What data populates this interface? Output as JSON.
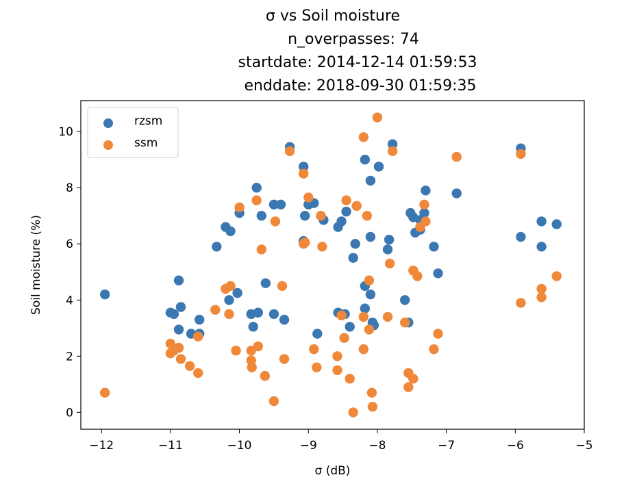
{
  "chart_data": {
    "type": "scatter",
    "title_lines": [
      "σ vs Soil moisture",
      "n_overpasses: 74",
      "startdate: 2014-12-14 01:59:53",
      "enddate: 2018-09-30 01:59:35"
    ],
    "xlabel": "σ (dB)",
    "ylabel": "Soil moisture (%)",
    "xlim": [
      -12.3,
      -5.0
    ],
    "ylim": [
      -0.6,
      11.1
    ],
    "xticks": [
      -12,
      -11,
      -10,
      -9,
      -8,
      -7,
      -6,
      -5
    ],
    "xtick_labels": [
      "−12",
      "−11",
      "−10",
      "−9",
      "−8",
      "−7",
      "−6",
      "−5"
    ],
    "yticks": [
      0,
      2,
      4,
      6,
      8,
      10
    ],
    "ytick_labels": [
      "0",
      "2",
      "4",
      "6",
      "8",
      "10"
    ],
    "grid": false,
    "legend_position": "upper-left",
    "series": [
      {
        "name": "rzsm",
        "color": "#3b78b1",
        "points": [
          [
            -11.95,
            4.2
          ],
          [
            -11.0,
            3.55
          ],
          [
            -10.95,
            3.5
          ],
          [
            -10.88,
            4.7
          ],
          [
            -10.85,
            3.75
          ],
          [
            -10.88,
            2.95
          ],
          [
            -10.7,
            2.8
          ],
          [
            -10.58,
            3.3
          ],
          [
            -10.58,
            2.8
          ],
          [
            -10.33,
            5.9
          ],
          [
            -10.2,
            6.6
          ],
          [
            -10.13,
            6.45
          ],
          [
            -10.15,
            4.0
          ],
          [
            -10.03,
            4.25
          ],
          [
            -10.0,
            7.1
          ],
          [
            -9.8,
            3.05
          ],
          [
            -9.83,
            3.5
          ],
          [
            -9.73,
            3.55
          ],
          [
            -9.75,
            8.0
          ],
          [
            -9.68,
            7.0
          ],
          [
            -9.62,
            4.6
          ],
          [
            -9.5,
            7.4
          ],
          [
            -9.5,
            3.5
          ],
          [
            -9.4,
            7.4
          ],
          [
            -9.35,
            3.3
          ],
          [
            -9.27,
            9.45
          ],
          [
            -9.07,
            8.75
          ],
          [
            -9.07,
            6.1
          ],
          [
            -9.05,
            7.0
          ],
          [
            -9.0,
            7.4
          ],
          [
            -8.92,
            7.45
          ],
          [
            -8.87,
            2.8
          ],
          [
            -8.78,
            6.85
          ],
          [
            -8.57,
            6.6
          ],
          [
            -8.52,
            6.8
          ],
          [
            -8.45,
            7.15
          ],
          [
            -8.57,
            3.55
          ],
          [
            -8.47,
            3.5
          ],
          [
            -8.4,
            3.05
          ],
          [
            -8.35,
            5.5
          ],
          [
            -8.32,
            6.0
          ],
          [
            -8.18,
            9.0
          ],
          [
            -8.18,
            4.5
          ],
          [
            -8.18,
            3.7
          ],
          [
            -8.1,
            8.25
          ],
          [
            -8.1,
            6.25
          ],
          [
            -8.1,
            4.2
          ],
          [
            -8.07,
            3.2
          ],
          [
            -8.05,
            3.1
          ],
          [
            -7.98,
            8.75
          ],
          [
            -7.83,
            6.15
          ],
          [
            -7.85,
            5.8
          ],
          [
            -7.78,
            9.55
          ],
          [
            -7.6,
            4.0
          ],
          [
            -7.55,
            3.2
          ],
          [
            -7.52,
            7.1
          ],
          [
            -7.48,
            6.95
          ],
          [
            -7.45,
            6.4
          ],
          [
            -7.38,
            6.5
          ],
          [
            -7.38,
            6.85
          ],
          [
            -7.32,
            7.1
          ],
          [
            -7.3,
            7.9
          ],
          [
            -7.18,
            5.9
          ],
          [
            -7.12,
            4.95
          ],
          [
            -6.85,
            7.8
          ],
          [
            -5.92,
            9.4
          ],
          [
            -5.92,
            6.25
          ],
          [
            -5.62,
            6.8
          ],
          [
            -5.62,
            5.9
          ],
          [
            -5.4,
            6.7
          ]
        ]
      },
      {
        "name": "ssm",
        "color": "#f0883a",
        "points": [
          [
            -11.95,
            0.7
          ],
          [
            -11.0,
            2.45
          ],
          [
            -11.0,
            2.1
          ],
          [
            -10.95,
            2.2
          ],
          [
            -10.88,
            2.3
          ],
          [
            -10.85,
            1.9
          ],
          [
            -10.72,
            1.65
          ],
          [
            -10.6,
            1.4
          ],
          [
            -10.6,
            2.7
          ],
          [
            -10.35,
            3.65
          ],
          [
            -10.2,
            4.4
          ],
          [
            -10.13,
            4.5
          ],
          [
            -10.15,
            3.5
          ],
          [
            -10.05,
            2.2
          ],
          [
            -10.0,
            7.3
          ],
          [
            -9.83,
            2.2
          ],
          [
            -9.83,
            1.85
          ],
          [
            -9.82,
            1.6
          ],
          [
            -9.75,
            7.55
          ],
          [
            -9.73,
            2.35
          ],
          [
            -9.68,
            5.8
          ],
          [
            -9.63,
            1.3
          ],
          [
            -9.5,
            0.4
          ],
          [
            -9.48,
            6.8
          ],
          [
            -9.38,
            4.5
          ],
          [
            -9.35,
            1.9
          ],
          [
            -9.27,
            9.3
          ],
          [
            -9.07,
            8.5
          ],
          [
            -9.07,
            6.0
          ],
          [
            -9.05,
            6.05
          ],
          [
            -9.0,
            7.65
          ],
          [
            -8.92,
            2.25
          ],
          [
            -8.88,
            1.6
          ],
          [
            -8.82,
            7.0
          ],
          [
            -8.8,
            5.9
          ],
          [
            -8.58,
            2.0
          ],
          [
            -8.58,
            1.5
          ],
          [
            -8.52,
            3.45
          ],
          [
            -8.48,
            2.65
          ],
          [
            -8.45,
            7.55
          ],
          [
            -8.4,
            1.2
          ],
          [
            -8.35,
            0.0
          ],
          [
            -8.3,
            7.35
          ],
          [
            -8.2,
            9.8
          ],
          [
            -8.2,
            3.4
          ],
          [
            -8.2,
            2.25
          ],
          [
            -8.15,
            7.0
          ],
          [
            -8.12,
            4.7
          ],
          [
            -8.12,
            2.95
          ],
          [
            -8.08,
            0.7
          ],
          [
            -8.07,
            0.2
          ],
          [
            -8.0,
            10.5
          ],
          [
            -7.85,
            3.4
          ],
          [
            -7.82,
            5.3
          ],
          [
            -7.78,
            9.3
          ],
          [
            -7.6,
            3.2
          ],
          [
            -7.55,
            1.4
          ],
          [
            -7.55,
            0.9
          ],
          [
            -7.48,
            1.2
          ],
          [
            -7.48,
            5.05
          ],
          [
            -7.42,
            4.85
          ],
          [
            -7.38,
            6.6
          ],
          [
            -7.32,
            7.4
          ],
          [
            -7.3,
            6.8
          ],
          [
            -7.18,
            2.25
          ],
          [
            -7.12,
            2.8
          ],
          [
            -6.85,
            9.1
          ],
          [
            -5.92,
            9.2
          ],
          [
            -5.92,
            3.9
          ],
          [
            -5.62,
            4.4
          ],
          [
            -5.62,
            4.1
          ],
          [
            -5.4,
            4.85
          ]
        ]
      }
    ]
  }
}
